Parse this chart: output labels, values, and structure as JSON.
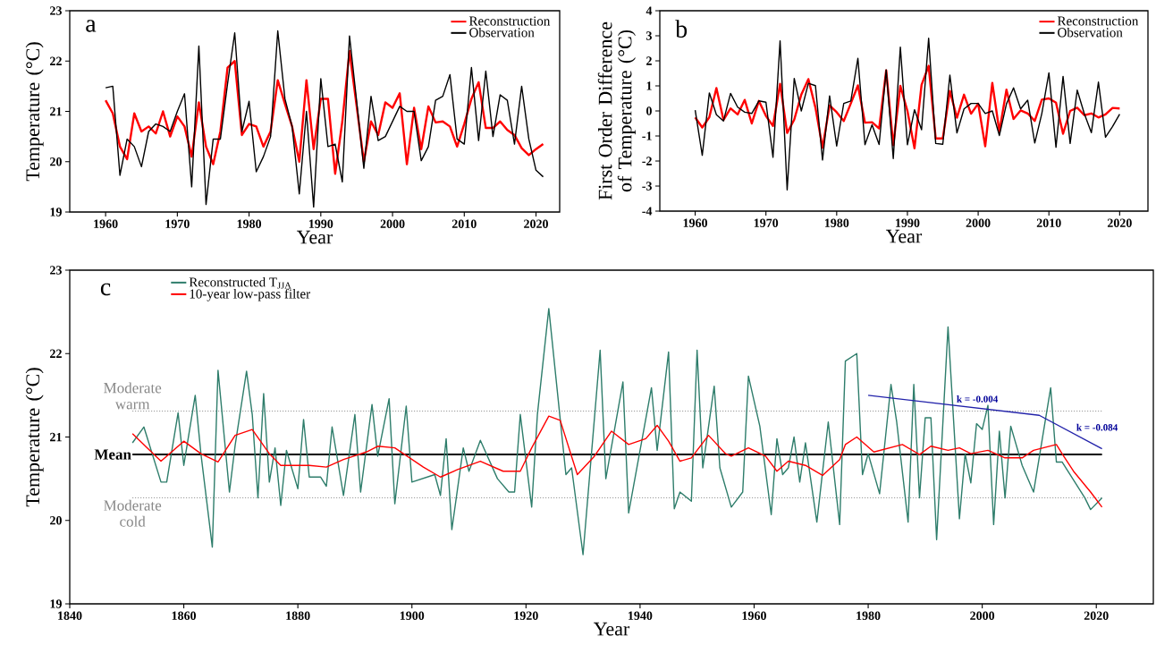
{
  "chart_data": [
    {
      "type": "line",
      "xlabel": "Year",
      "ylabel": "Temperature (°C)",
      "annotations": [
        "a"
      ],
      "legend": "top right",
      "marker": "none",
      "line_style": "solid",
      "x": [
        1960,
        1961,
        1962,
        1963,
        1964,
        1965,
        1966,
        1967,
        1968,
        1969,
        1970,
        1971,
        1972,
        1973,
        1974,
        1975,
        1976,
        1977,
        1978,
        1979,
        1980,
        1981,
        1982,
        1983,
        1984,
        1985,
        1986,
        1987,
        1988,
        1989,
        1990,
        1991,
        1992,
        1993,
        1994,
        1995,
        1996,
        1997,
        1998,
        1999,
        2000,
        2001,
        2002,
        2003,
        2004,
        2005,
        2006,
        2007,
        2008,
        2009,
        2010,
        2011,
        2012,
        2013,
        2014,
        2015,
        2016,
        2017,
        2018,
        2019,
        2020,
        2021
      ],
      "xlim": [
        1955,
        2023.3
      ],
      "xticks": [
        1960,
        1970,
        1980,
        1990,
        2000,
        2010,
        2020
      ],
      "ylim": [
        19,
        23
      ],
      "yticks": [
        19,
        20,
        21,
        22,
        23
      ],
      "series": [
        {
          "name": "Reconstruction",
          "color": "#ff0000",
          "values": [
            21.22,
            20.96,
            20.3,
            20.05,
            20.96,
            20.6,
            20.7,
            20.56,
            21.0,
            20.5,
            20.9,
            20.7,
            20.1,
            21.18,
            20.3,
            19.95,
            20.6,
            21.87,
            22.0,
            20.53,
            20.75,
            20.7,
            20.3,
            20.6,
            21.62,
            21.15,
            20.7,
            20.0,
            21.62,
            20.25,
            21.25,
            21.25,
            19.76,
            20.8,
            22.2,
            21.1,
            20.0,
            20.8,
            20.53,
            21.18,
            21.07,
            21.36,
            19.95,
            21.07,
            20.25,
            21.1,
            20.78,
            20.8,
            20.7,
            20.3,
            20.75,
            21.25,
            21.58,
            20.67,
            20.67,
            20.8,
            20.63,
            20.53,
            20.27,
            20.13,
            20.25,
            20.35
          ]
        },
        {
          "name": "Observation",
          "color": "#000000",
          "values": [
            21.47,
            21.5,
            19.73,
            20.45,
            20.3,
            19.9,
            20.6,
            20.75,
            20.7,
            20.6,
            21.0,
            21.35,
            19.5,
            22.3,
            19.15,
            20.45,
            20.45,
            21.55,
            22.56,
            20.6,
            21.2,
            19.8,
            20.1,
            20.5,
            22.6,
            21.25,
            20.7,
            19.36,
            21.0,
            19.1,
            21.65,
            20.3,
            20.35,
            19.6,
            22.5,
            21.2,
            19.87,
            21.3,
            20.42,
            20.5,
            20.8,
            21.1,
            21.0,
            21.0,
            20.02,
            20.3,
            21.22,
            21.3,
            21.73,
            20.45,
            20.35,
            21.87,
            20.42,
            21.8,
            20.5,
            21.33,
            21.22,
            20.35,
            21.5,
            20.45,
            19.83,
            19.7
          ]
        }
      ]
    },
    {
      "type": "line",
      "xlabel": "Year",
      "ylabel": "First Order Difference of Temperature (°C)",
      "annotations": [
        "b"
      ],
      "legend": "top right",
      "marker": "none",
      "line_style": "solid",
      "x": [
        1960,
        1961,
        1962,
        1963,
        1964,
        1965,
        1966,
        1967,
        1968,
        1969,
        1970,
        1971,
        1972,
        1973,
        1974,
        1975,
        1976,
        1977,
        1978,
        1979,
        1980,
        1981,
        1982,
        1983,
        1984,
        1985,
        1986,
        1987,
        1988,
        1989,
        1990,
        1991,
        1992,
        1993,
        1994,
        1995,
        1996,
        1997,
        1998,
        1999,
        2000,
        2001,
        2002,
        2003,
        2004,
        2005,
        2006,
        2007,
        2008,
        2009,
        2010,
        2011,
        2012,
        2013,
        2014,
        2015,
        2016,
        2017,
        2018,
        2019,
        2020
      ],
      "xlim": [
        1955,
        2024
      ],
      "xticks": [
        1960,
        1970,
        1980,
        1990,
        2000,
        2010,
        2020
      ],
      "ylim": [
        -4,
        4
      ],
      "yticks": [
        -4,
        -3,
        -2,
        -1,
        0,
        1,
        2,
        3,
        4
      ],
      "series": [
        {
          "name": "Reconstruction",
          "color": "#ff0000",
          "values": [
            -0.26,
            -0.66,
            -0.25,
            0.91,
            -0.36,
            0.1,
            -0.14,
            0.44,
            -0.5,
            0.4,
            -0.2,
            -0.6,
            1.08,
            -0.88,
            -0.35,
            0.65,
            1.27,
            0.13,
            -1.47,
            0.22,
            -0.05,
            -0.4,
            0.3,
            1.02,
            -0.47,
            -0.45,
            -0.7,
            1.62,
            -1.37,
            1.0,
            0,
            -1.49,
            1.04,
            1.8,
            -1.1,
            -1.1,
            0.8,
            -0.27,
            0.65,
            -0.11,
            0.29,
            -1.41,
            1.12,
            -0.82,
            0.85,
            -0.32,
            0.02,
            -0.1,
            -0.4,
            0.45,
            0.5,
            0.33,
            -0.91,
            0,
            0.13,
            -0.17,
            -0.1,
            -0.26,
            -0.14,
            0.12,
            0.1
          ]
        },
        {
          "name": "Observation",
          "color": "#000000",
          "values": [
            0.03,
            -1.77,
            0.72,
            -0.15,
            -0.4,
            0.7,
            0.15,
            -0.05,
            -0.1,
            0.4,
            0.35,
            -1.85,
            2.8,
            -3.15,
            1.3,
            0,
            1.1,
            1.01,
            -1.96,
            0.6,
            -1.4,
            0.3,
            0.4,
            2.1,
            -1.35,
            -0.55,
            -1.34,
            1.64,
            -1.9,
            2.55,
            -1.35,
            0.05,
            -0.75,
            2.9,
            -1.3,
            -1.33,
            1.43,
            -0.88,
            0.08,
            0.3,
            0.3,
            -0.1,
            0,
            -0.98,
            0.28,
            0.92,
            0.08,
            0.43,
            -1.28,
            -0.1,
            1.52,
            -1.45,
            1.38,
            -1.3,
            0.83,
            -0.11,
            -0.87,
            1.15,
            -1.05,
            -0.62,
            -0.13
          ]
        }
      ]
    },
    {
      "type": "line",
      "xlabel": "Year",
      "ylabel": "Temperature (°C)",
      "legend": "top left",
      "marker": "none",
      "line_style": "solid",
      "xlim": [
        1840,
        2030
      ],
      "xticks": [
        1840,
        1860,
        1880,
        1900,
        1920,
        1940,
        1960,
        1980,
        2000,
        2020
      ],
      "ylim": [
        19,
        23
      ],
      "yticks": [
        19,
        20,
        21,
        22,
        23
      ],
      "annotations": [
        "c",
        {
          "text": "k = -0.004",
          "x": 1995,
          "y": 21.38
        },
        {
          "text": "k = -0.084",
          "x": 2016,
          "y": 21.04
        }
      ],
      "ref_lines": [
        {
          "axis": "y",
          "value": 20.79,
          "label": "Mean",
          "color": "#000000",
          "line_style": "solid"
        },
        {
          "axis": "y",
          "value": 21.31,
          "label": "Moderate warm",
          "color": "#888888",
          "line_style": "dotted"
        },
        {
          "axis": "y",
          "value": 20.27,
          "label": "Moderate cold",
          "color": "#888888",
          "line_style": "dotted"
        }
      ],
      "series": [
        {
          "name": "Reconstructed T$_{JJA}$",
          "color": "#2e7d6b",
          "x": [
            1851,
            1853,
            1856,
            1857,
            1859,
            1860,
            1862,
            1863,
            1865,
            1866,
            1868,
            1869,
            1871,
            1872,
            1873,
            1874,
            1875,
            1876,
            1877,
            1878,
            1880,
            1881,
            1882,
            1884,
            1885,
            1886,
            1888,
            1890,
            1891,
            1893,
            1894,
            1896,
            1897,
            1899,
            1900,
            1904,
            1905,
            1906,
            1907,
            1909,
            1910,
            1912,
            1915,
            1917,
            1918,
            1919,
            1921,
            1922,
            1924,
            1927,
            1928,
            1930,
            1933,
            1934,
            1937,
            1938,
            1942,
            1943,
            1945,
            1946,
            1947,
            1949,
            1950,
            1951,
            1953,
            1954,
            1956,
            1958,
            1959,
            1961,
            1963,
            1964,
            1965,
            1966,
            1967,
            1968,
            1969,
            1971,
            1973,
            1975,
            1976,
            1978,
            1979,
            1980,
            1982,
            1984,
            1985,
            1987,
            1988,
            1989,
            1990,
            1991,
            1992,
            1994,
            1996,
            1997,
            1998,
            1999,
            2000,
            2001,
            2002,
            2003,
            2004,
            2005,
            2007,
            2009,
            2012,
            2013,
            2014,
            2018,
            2019,
            2021
          ],
          "values": [
            20.93,
            21.12,
            20.46,
            20.46,
            21.29,
            20.66,
            21.5,
            20.8,
            19.68,
            21.8,
            20.34,
            20.9,
            21.79,
            21.27,
            20.27,
            21.52,
            20.46,
            20.87,
            20.18,
            20.84,
            20.38,
            21.21,
            20.52,
            20.52,
            20.41,
            21.12,
            20.3,
            21.27,
            20.34,
            21.39,
            20.77,
            21.46,
            20.2,
            21.37,
            20.46,
            20.55,
            20.3,
            20.98,
            19.89,
            20.87,
            20.59,
            20.96,
            20.5,
            20.34,
            20.34,
            21.27,
            20.16,
            21.27,
            22.54,
            20.55,
            20.63,
            19.59,
            22.04,
            20.5,
            21.66,
            20.09,
            21.59,
            20.84,
            22.02,
            20.14,
            20.34,
            20.23,
            22.04,
            20.63,
            21.61,
            20.63,
            20.16,
            20.34,
            21.73,
            21.13,
            20.07,
            20.98,
            20.55,
            20.63,
            21.0,
            20.46,
            20.93,
            19.98,
            21.18,
            19.95,
            21.91,
            22.0,
            20.55,
            20.8,
            20.32,
            21.63,
            21.18,
            19.98,
            21.63,
            20.27,
            21.23,
            21.23,
            19.77,
            22.32,
            20.02,
            20.8,
            20.45,
            21.16,
            21.09,
            21.38,
            19.95,
            21.07,
            20.27,
            21.13,
            20.66,
            20.34,
            21.59,
            20.7,
            20.7,
            20.27,
            20.13,
            20.27
          ]
        },
        {
          "name": "10-year low-pass filter",
          "color": "#ff0000",
          "x": [
            1851,
            1856,
            1860,
            1863,
            1866,
            1869,
            1872,
            1875,
            1877,
            1882,
            1885,
            1888,
            1892,
            1894,
            1897,
            1902,
            1905,
            1908,
            1912,
            1916,
            1919,
            1921,
            1924,
            1926,
            1929,
            1932,
            1935,
            1938,
            1941,
            1943,
            1945,
            1947,
            1949,
            1952,
            1955,
            1956,
            1959,
            1962,
            1964,
            1966,
            1969,
            1972,
            1975,
            1976,
            1978,
            1981,
            1986,
            1989,
            1991,
            1994,
            1996,
            1998,
            2001,
            2004,
            2007,
            2009,
            2013,
            2014,
            2016,
            2019,
            2021
          ],
          "values": [
            21.04,
            20.71,
            20.95,
            20.8,
            20.7,
            21.02,
            21.09,
            20.8,
            20.66,
            20.66,
            20.64,
            20.73,
            20.82,
            20.89,
            20.87,
            20.64,
            20.52,
            20.61,
            20.71,
            20.59,
            20.59,
            20.87,
            21.25,
            21.2,
            20.55,
            20.77,
            21.07,
            20.91,
            20.98,
            21.14,
            20.95,
            20.71,
            20.75,
            21.02,
            20.8,
            20.77,
            20.87,
            20.77,
            20.59,
            20.71,
            20.66,
            20.54,
            20.73,
            20.91,
            21.0,
            20.82,
            20.91,
            20.79,
            20.89,
            20.84,
            20.87,
            20.8,
            20.84,
            20.75,
            20.75,
            20.84,
            20.91,
            20.8,
            20.59,
            20.34,
            20.16
          ]
        },
        {
          "type": "line",
          "color": "#2222aa",
          "x": [
            1980,
            2010,
            2021
          ],
          "values": [
            21.5,
            21.26,
            20.86
          ]
        }
      ]
    }
  ]
}
